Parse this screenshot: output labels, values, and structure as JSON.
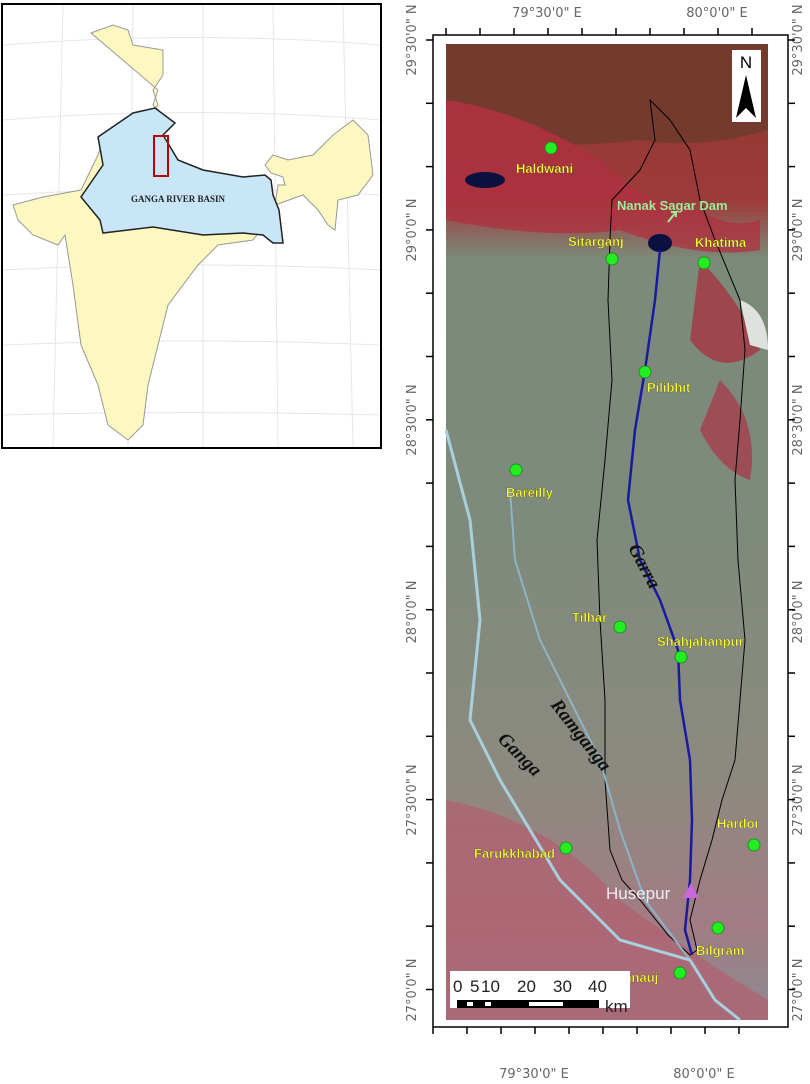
{
  "inset": {
    "basin_label": "GANGA RIVER BASIN",
    "colors": {
      "india": "#fdf7c0",
      "basin": "#c8e6f8",
      "study_area_box": "#c00000"
    }
  },
  "map": {
    "longitude_labels": [
      "79°30'0\" E",
      "80°0'0\" E"
    ],
    "latitude_labels": [
      "29°30'0\" N",
      "29°0'0\" N",
      "28°30'0\" N",
      "28°0'0\" N",
      "27°30'0\" N",
      "27°0'0\" N"
    ],
    "north_arrow": "N",
    "cities": [
      "Haldwani",
      "Sitarganj",
      "Khatima",
      "Pilibhit",
      "Bareilly",
      "Tilhar",
      "Shahjahanpur",
      "Farukkhabad",
      "Hardoi",
      "Bilgram",
      "Kannauj"
    ],
    "dam_label": "Nanak Sagar Dam",
    "outlet_label": "Husepur",
    "rivers": [
      "Garra",
      "Ramganga",
      "Ganga"
    ],
    "scale_bar": {
      "ticks": [
        "0",
        "5",
        "10",
        "20",
        "30",
        "40"
      ],
      "unit": "km"
    },
    "colors": {
      "city_marker": "#22ee22",
      "city_text": "#ffff33",
      "river": "#1a1aa0",
      "outlet_marker": "#cc66dd",
      "dam_text": "#99ee99"
    }
  }
}
